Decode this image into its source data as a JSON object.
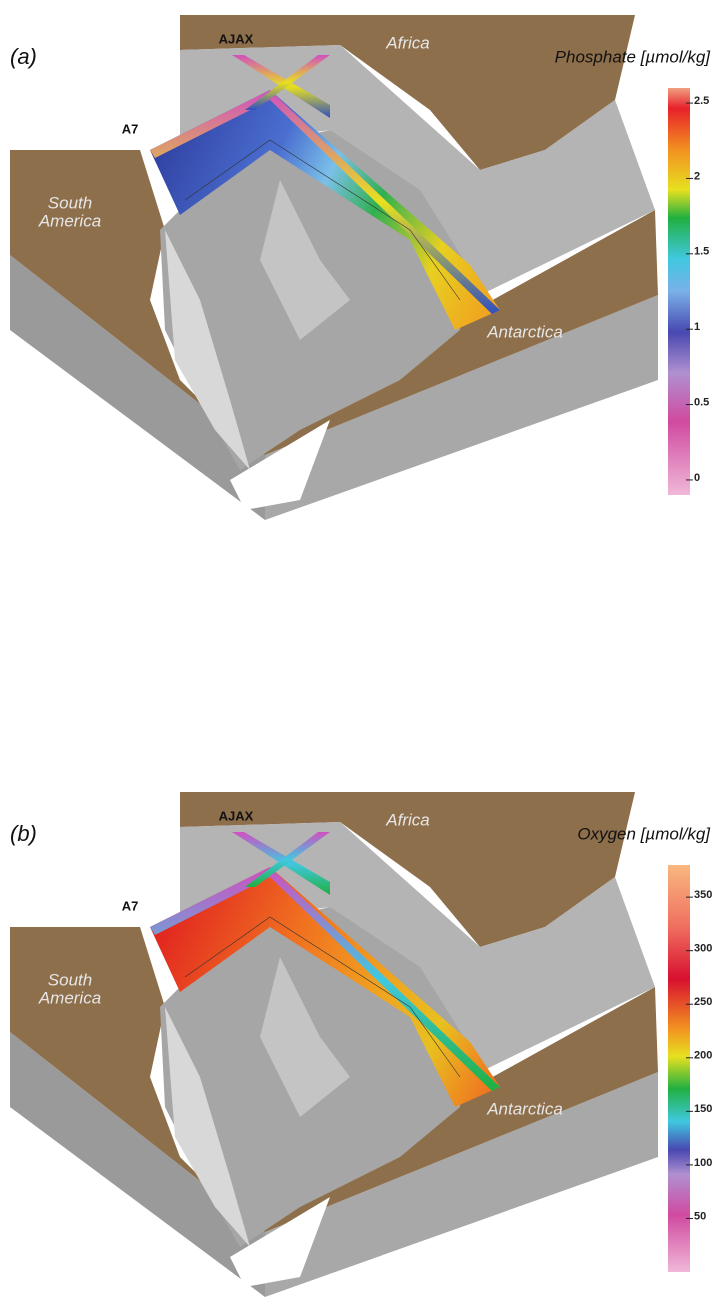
{
  "panels": [
    {
      "label": "(a)",
      "title": "Phosphate [µmol/kg]",
      "places": {
        "ajax": "AJAX",
        "a7": "A7",
        "africa": "Africa",
        "south_america": [
          "South",
          "America"
        ],
        "antarctica": "Antarctica"
      },
      "colorbar": {
        "lim": [
          -0.1,
          2.6
        ],
        "ticks": [
          0,
          0.5,
          1,
          1.5,
          2,
          2.5
        ]
      }
    },
    {
      "label": "(b)",
      "title": "Oxygen [µmol/kg]",
      "places": {
        "ajax": "AJAX",
        "a7": "A7",
        "africa": "Africa",
        "south_america": [
          "South",
          "America"
        ],
        "antarctica": "Antarctica"
      },
      "colorbar": {
        "lim": [
          0,
          380
        ],
        "ticks": [
          50,
          100,
          150,
          200,
          250,
          300,
          350
        ]
      }
    }
  ]
}
